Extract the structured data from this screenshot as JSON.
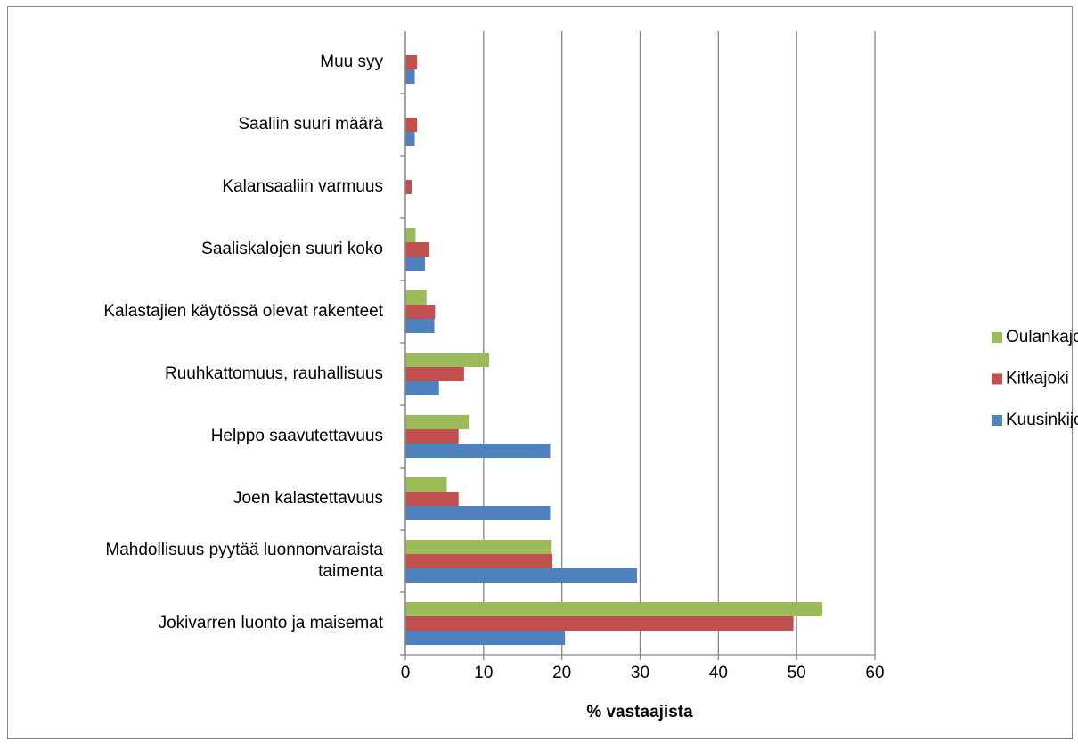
{
  "chart_data": {
    "type": "bar",
    "orientation": "horizontal",
    "x_label": "% vastaajista",
    "categories": [
      "Jokivarren luonto ja maisemat",
      "Mahdollisuus pyytää luonnonvaraista taimenta",
      "Joen kalastettavuus",
      "Helppo saavutettavuus",
      "Ruuhkattomuus, rauhallisuus",
      "Kalastajien käytössä olevat rakenteet",
      "Saaliskalojen suuri koko",
      "Kalansaaliin varmuus",
      "Saaliin suuri määrä",
      "Muu syy"
    ],
    "series": [
      {
        "name": "Oulankajoki",
        "color": "#9bbb59",
        "values": [
          53.3,
          18.7,
          5.3,
          8.1,
          10.7,
          2.7,
          1.3,
          0,
          0,
          0
        ]
      },
      {
        "name": "Kitkajoki",
        "color": "#c0504d",
        "values": [
          49.6,
          18.8,
          6.8,
          6.8,
          7.5,
          3.8,
          3.0,
          0.8,
          1.5,
          1.5
        ]
      },
      {
        "name": "Kuusinkijoki",
        "color": "#4f81bd",
        "values": [
          20.4,
          29.6,
          18.5,
          18.5,
          4.3,
          3.7,
          2.5,
          0,
          1.2,
          1.2
        ]
      }
    ],
    "xlim": [
      0,
      60
    ],
    "xticks": [
      0,
      10,
      20,
      30,
      40,
      50,
      60
    ],
    "grid": true,
    "legend": "right"
  }
}
